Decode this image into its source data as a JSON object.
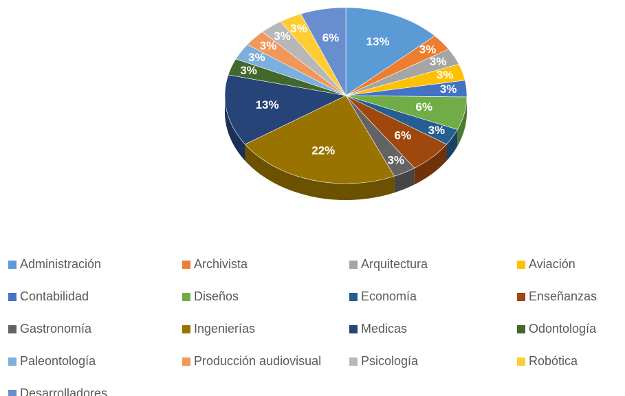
{
  "chart_data": {
    "type": "pie",
    "categories": [
      "Administración",
      "Archivista",
      "Arquitectura",
      "Aviación",
      "Contabilidad",
      "Diseños",
      "Economía",
      "Enseñanzas",
      "Gastronomía",
      "Ingenierías",
      "Medicas",
      "Odontología",
      "Paleontología",
      "Producción audiovisual",
      "Psicología",
      "Robótica",
      "Desarrolladores"
    ],
    "values": [
      13,
      3,
      3,
      3,
      3,
      6,
      3,
      6,
      3,
      22,
      13,
      3,
      3,
      3,
      3,
      3,
      6
    ],
    "value_labels": [
      "13%",
      "3%",
      "3%",
      "3%",
      "3%",
      "6%",
      "3%",
      "6%",
      "3%",
      "22%",
      "13%",
      "3%",
      "3%",
      "3%",
      "3%",
      "3%",
      "6%"
    ],
    "colors": [
      "#5b9bd5",
      "#ed7d31",
      "#a5a5a5",
      "#ffc000",
      "#4472c4",
      "#70ad47",
      "#255e91",
      "#9e480e",
      "#636363",
      "#997300",
      "#264478",
      "#43682b",
      "#7cafdd",
      "#f1975a",
      "#b7b7b7",
      "#ffcd33",
      "#698ed0"
    ],
    "legend": "bottom"
  }
}
